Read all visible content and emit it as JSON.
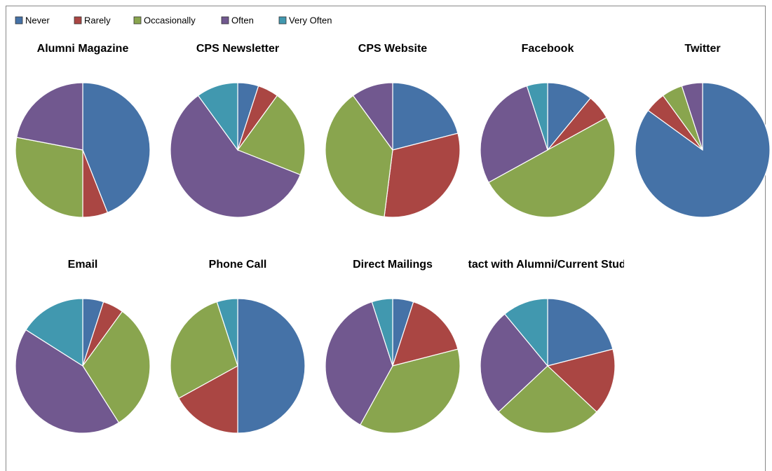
{
  "legend": {
    "categories": [
      "Never",
      "Rarely",
      "Occasionally",
      "Often",
      "Very Often"
    ],
    "colors": [
      "#4572a7",
      "#aa4643",
      "#89a54e",
      "#71588f",
      "#4198af"
    ]
  },
  "chart_data": [
    {
      "type": "pie",
      "title": "Alumni Magazine",
      "values": [
        44,
        6,
        28,
        22,
        0
      ]
    },
    {
      "type": "pie",
      "title": "CPS Newsletter",
      "values": [
        5,
        5,
        21,
        59,
        10
      ]
    },
    {
      "type": "pie",
      "title": "CPS Website",
      "values": [
        21,
        31,
        38,
        10,
        0
      ]
    },
    {
      "type": "pie",
      "title": "Facebook",
      "values": [
        11,
        6,
        50,
        28,
        5
      ]
    },
    {
      "type": "pie",
      "title": "Twitter",
      "values": [
        85,
        5,
        5,
        5,
        0
      ]
    },
    {
      "type": "pie",
      "title": "Email",
      "values": [
        5,
        5,
        31,
        43,
        16
      ]
    },
    {
      "type": "pie",
      "title": "Phone Call",
      "values": [
        50,
        17,
        28,
        0,
        5
      ]
    },
    {
      "type": "pie",
      "title": "Direct Mailings",
      "values": [
        5,
        16,
        37,
        37,
        5
      ]
    },
    {
      "type": "pie",
      "title": "Contact with Alumni/Current Students",
      "values": [
        21,
        16,
        26,
        26,
        11
      ]
    }
  ]
}
